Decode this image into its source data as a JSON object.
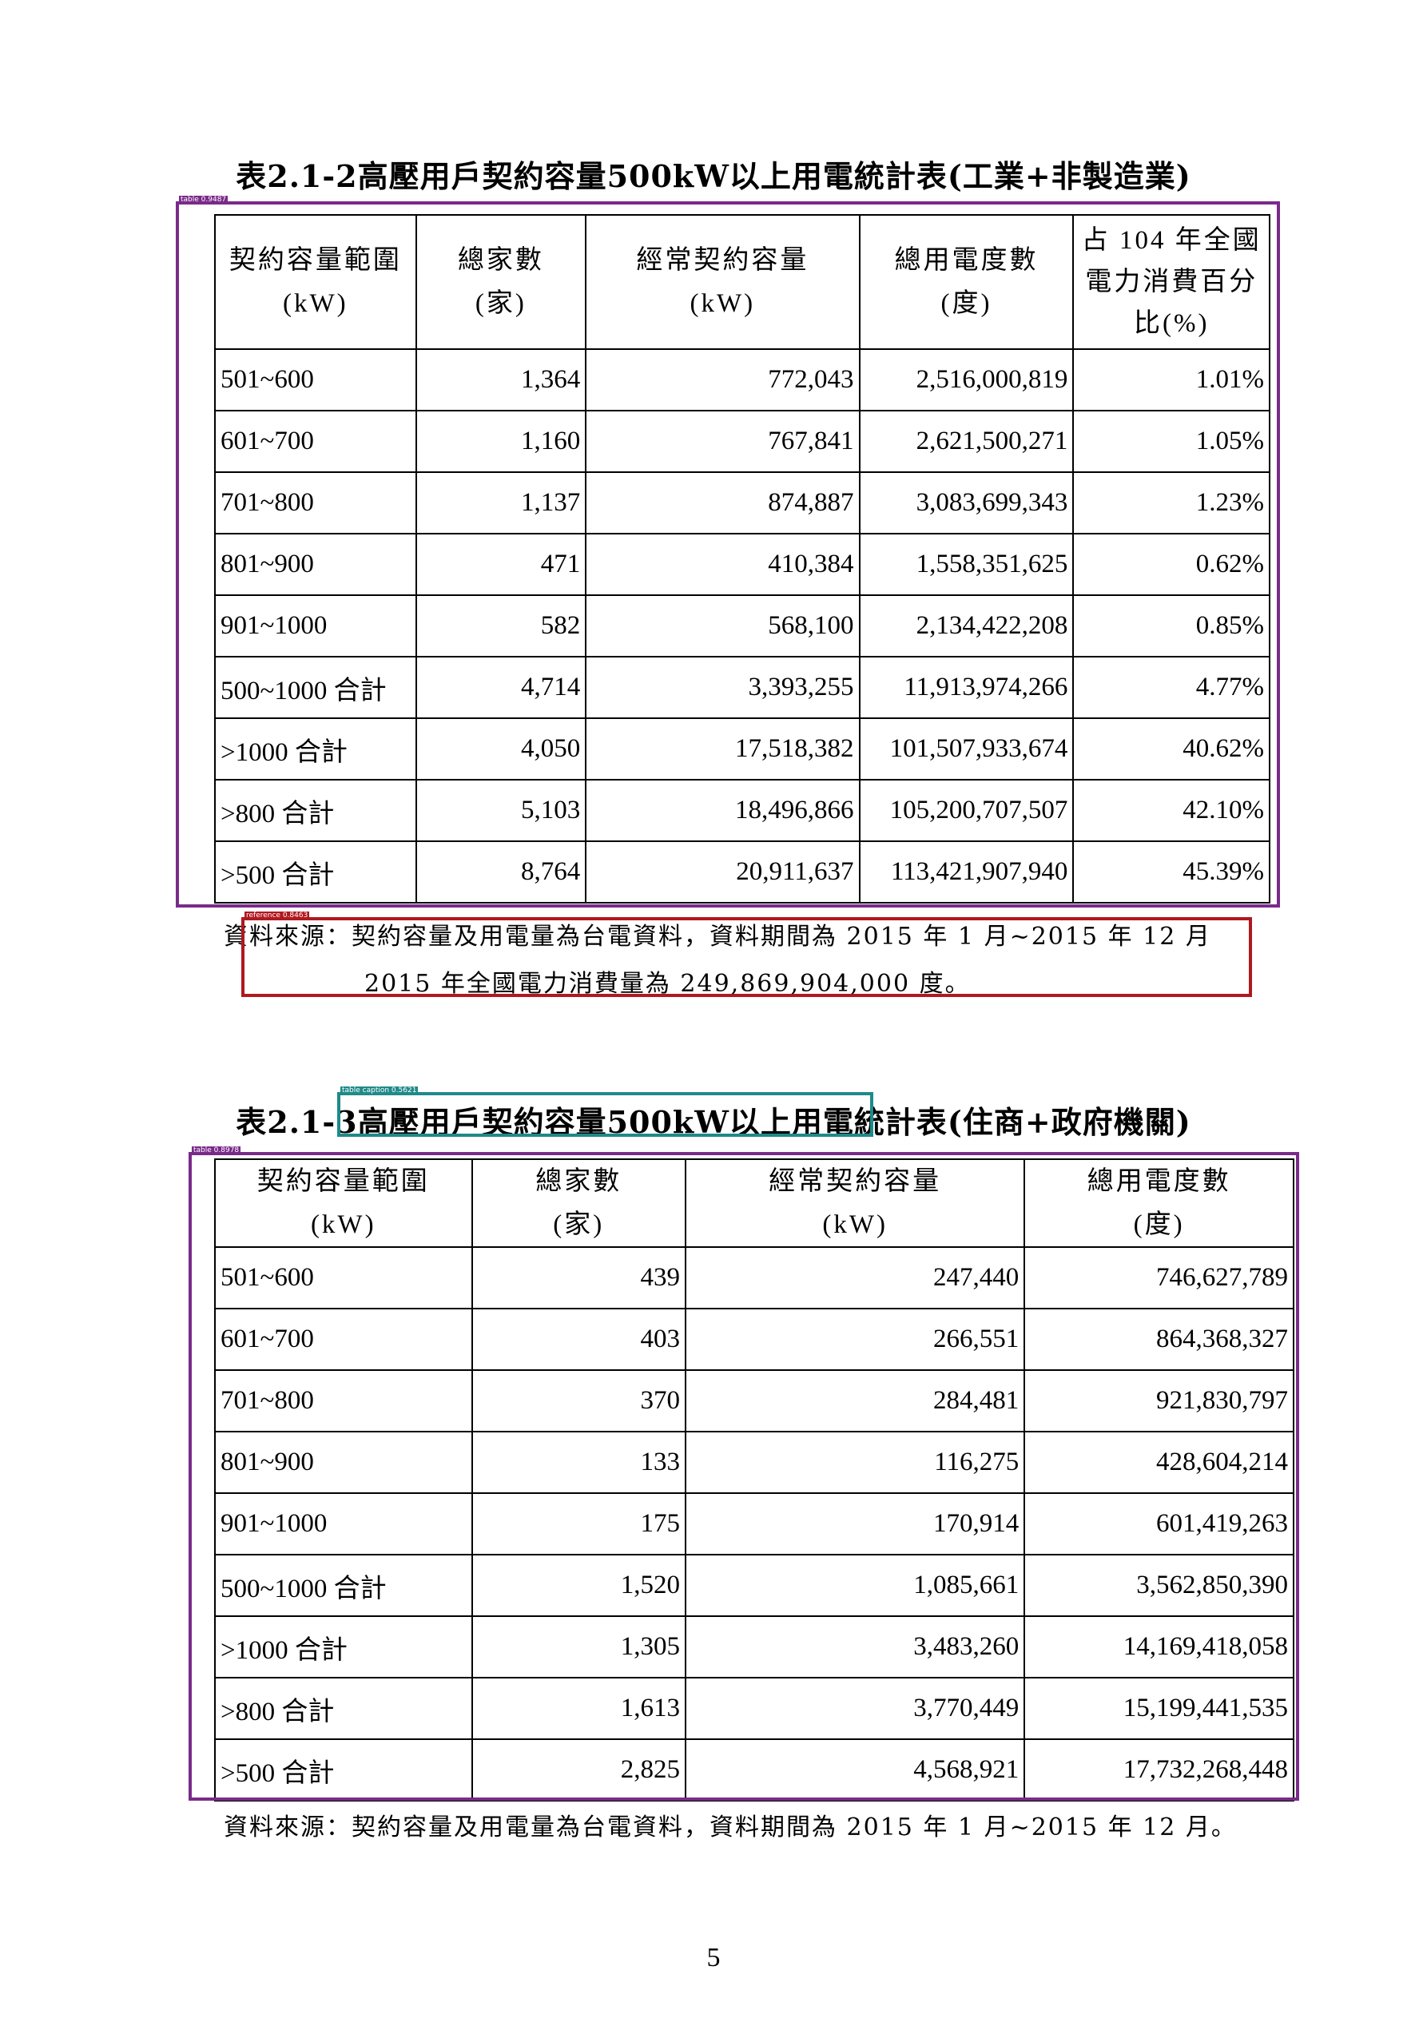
{
  "table1": {
    "title": "表2.1-2高壓用戶契約容量500kW以上用電統計表(工業+非製造業)",
    "headers": [
      [
        "契約容量範圍",
        "(kW)"
      ],
      [
        "總家數",
        "(家)"
      ],
      [
        "經常契約容量",
        "(kW)"
      ],
      [
        "總用電度數",
        "(度)"
      ],
      [
        "占 104 年全國",
        "電力消費百分",
        "比(%)"
      ]
    ],
    "rows": [
      [
        "501~600",
        "1,364",
        "772,043",
        "2,516,000,819",
        "1.01%"
      ],
      [
        "601~700",
        "1,160",
        "767,841",
        "2,621,500,271",
        "1.05%"
      ],
      [
        "701~800",
        "1,137",
        "874,887",
        "3,083,699,343",
        "1.23%"
      ],
      [
        "801~900",
        "471",
        "410,384",
        "1,558,351,625",
        "0.62%"
      ],
      [
        "901~1000",
        "582",
        "568,100",
        "2,134,422,208",
        "0.85%"
      ],
      [
        "500~1000 合計",
        "4,714",
        "3,393,255",
        "11,913,974,266",
        "4.77%"
      ],
      [
        ">1000 合計",
        "4,050",
        "17,518,382",
        "101,507,933,674",
        "40.62%"
      ],
      [
        ">800 合計",
        "5,103",
        "18,496,866",
        "105,200,707,507",
        "42.10%"
      ],
      [
        ">500 合計",
        "8,764",
        "20,911,637",
        "113,421,907,940",
        "45.39%"
      ]
    ],
    "source_line1": "資料來源：契約容量及用電量為台電資料，資料期間為 2015 年 1 月~2015 年 12 月",
    "source_line2": "2015 年全國電力消費量為 249,869,904,000 度。"
  },
  "table2": {
    "title": "表2.1-3高壓用戶契約容量500kW以上用電統計表(住商+政府機關)",
    "headers": [
      [
        "契約容量範圍",
        "(kW)"
      ],
      [
        "總家數",
        "(家)"
      ],
      [
        "經常契約容量",
        "(kW)"
      ],
      [
        "總用電度數",
        "(度)"
      ]
    ],
    "rows": [
      [
        "501~600",
        "439",
        "247,440",
        "746,627,789"
      ],
      [
        "601~700",
        "403",
        "266,551",
        "864,368,327"
      ],
      [
        "701~800",
        "370",
        "284,481",
        "921,830,797"
      ],
      [
        "801~900",
        "133",
        "116,275",
        "428,604,214"
      ],
      [
        "901~1000",
        "175",
        "170,914",
        "601,419,263"
      ],
      [
        "500~1000 合計",
        "1,520",
        "1,085,661",
        "3,562,850,390"
      ],
      [
        ">1000 合計",
        "1,305",
        "3,483,260",
        "14,169,418,058"
      ],
      [
        ">800 合計",
        "1,613",
        "3,770,449",
        "15,199,441,535"
      ],
      [
        ">500 合計",
        "2,825",
        "4,568,921",
        "17,732,268,448"
      ]
    ],
    "source_line1": "資料來源：契約容量及用電量為台電資料，資料期間為 2015 年 1 月~2015 年 12 月。"
  },
  "overlays": {
    "table1_tag": "table 0.9487",
    "reference_tag": "reference 0.8463",
    "caption_tag": "table caption 0.5621",
    "table2_tag": "table 0.8978"
  },
  "page_number": "5",
  "colors": {
    "table_box": "#7a2a8a",
    "reference_box": "#b0181f",
    "caption_box": "#1f8a8a"
  }
}
